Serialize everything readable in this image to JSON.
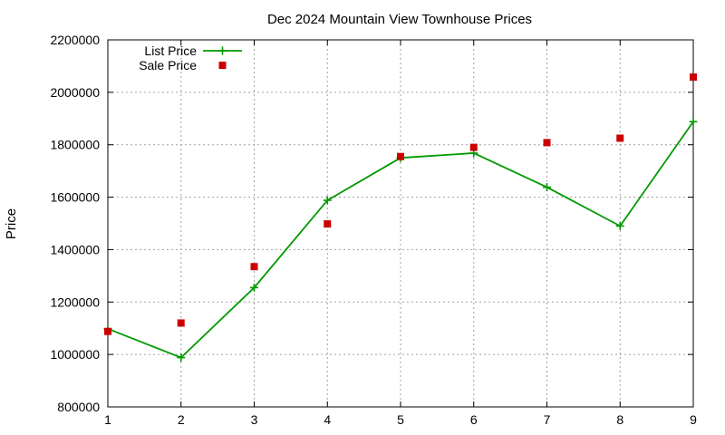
{
  "chart_data": {
    "type": "line",
    "title": "Dec 2024 Mountain View Townhouse Prices",
    "xlabel": "",
    "ylabel": "Price",
    "x": [
      1,
      2,
      3,
      4,
      5,
      6,
      7,
      8,
      9
    ],
    "xlim": [
      1,
      9
    ],
    "ylim": [
      800000,
      2200000
    ],
    "x_ticks": [
      "1",
      "2",
      "3",
      "4",
      "5",
      "6",
      "7",
      "8",
      "9"
    ],
    "y_ticks": [
      "800000",
      "1000000",
      "1200000",
      "1400000",
      "1600000",
      "1800000",
      "2000000",
      "2200000"
    ],
    "grid": true,
    "legend_position": "top-left",
    "series": [
      {
        "name": "List Price",
        "style": "line-with-plus-markers",
        "color": "#009900",
        "values": [
          1098000,
          988000,
          1255000,
          1588000,
          1750000,
          1768000,
          1638000,
          1490000,
          1888000
        ]
      },
      {
        "name": "Sale Price",
        "style": "square-markers",
        "color": "#cc0000",
        "values": [
          1088000,
          1120000,
          1335000,
          1498000,
          1755000,
          1790000,
          1808000,
          1825000,
          2058000
        ]
      }
    ]
  }
}
